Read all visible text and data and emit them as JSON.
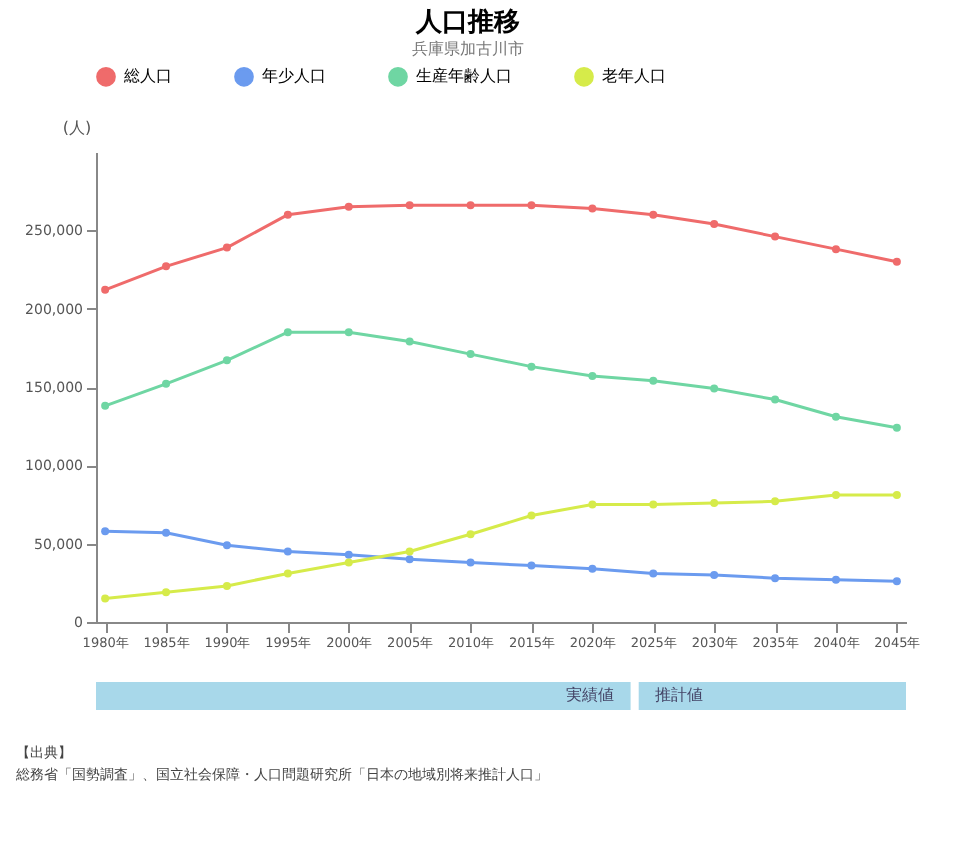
{
  "chart_data": {
    "type": "line",
    "title": "人口推移",
    "subtitle": "兵庫県加古川市",
    "ylabel": "(人)",
    "categories": [
      "1980年",
      "1985年",
      "1990年",
      "1995年",
      "2000年",
      "2005年",
      "2010年",
      "2015年",
      "2020年",
      "2025年",
      "2030年",
      "2035年",
      "2040年",
      "2045年"
    ],
    "series": [
      {
        "name": "総人口",
        "color": "#ef6b6b",
        "values": [
          212000,
          227000,
          239000,
          260000,
          265000,
          266000,
          266000,
          266000,
          264000,
          260000,
          254000,
          246000,
          238000,
          230000
        ]
      },
      {
        "name": "年少人口",
        "color": "#6b9bef",
        "values": [
          58000,
          57000,
          49000,
          45000,
          43000,
          40000,
          38000,
          36000,
          34000,
          31000,
          30000,
          28000,
          27000,
          26000
        ]
      },
      {
        "name": "生産年齢人口",
        "color": "#6fd6a3",
        "values": [
          138000,
          152000,
          167000,
          185000,
          185000,
          179000,
          171000,
          163000,
          157000,
          154000,
          149000,
          142000,
          131000,
          124000
        ]
      },
      {
        "name": "老年人口",
        "color": "#d6eb4a",
        "values": [
          15000,
          19000,
          23000,
          31000,
          38000,
          45000,
          56000,
          68000,
          75000,
          75000,
          76000,
          77000,
          81000,
          81000
        ]
      }
    ],
    "ylim": [
      0,
      300000
    ],
    "yticks": [
      0,
      {
        "value": 50000,
        "label": "50,000"
      },
      {
        "value": 100000,
        "label": "100,000"
      },
      {
        "value": 150000,
        "label": "150,000"
      },
      {
        "value": 200000,
        "label": "200,000"
      },
      {
        "value": 250000,
        "label": "250,000"
      }
    ],
    "grid": false,
    "legend": "top",
    "marker": "circle",
    "line_style": "solid",
    "annotations": [
      "実績値",
      "推計値",
      "【出典】",
      "総務省「国勢調査」、国立社会保障・人口問題研究所「日本の地域別将来推計人口」"
    ]
  }
}
